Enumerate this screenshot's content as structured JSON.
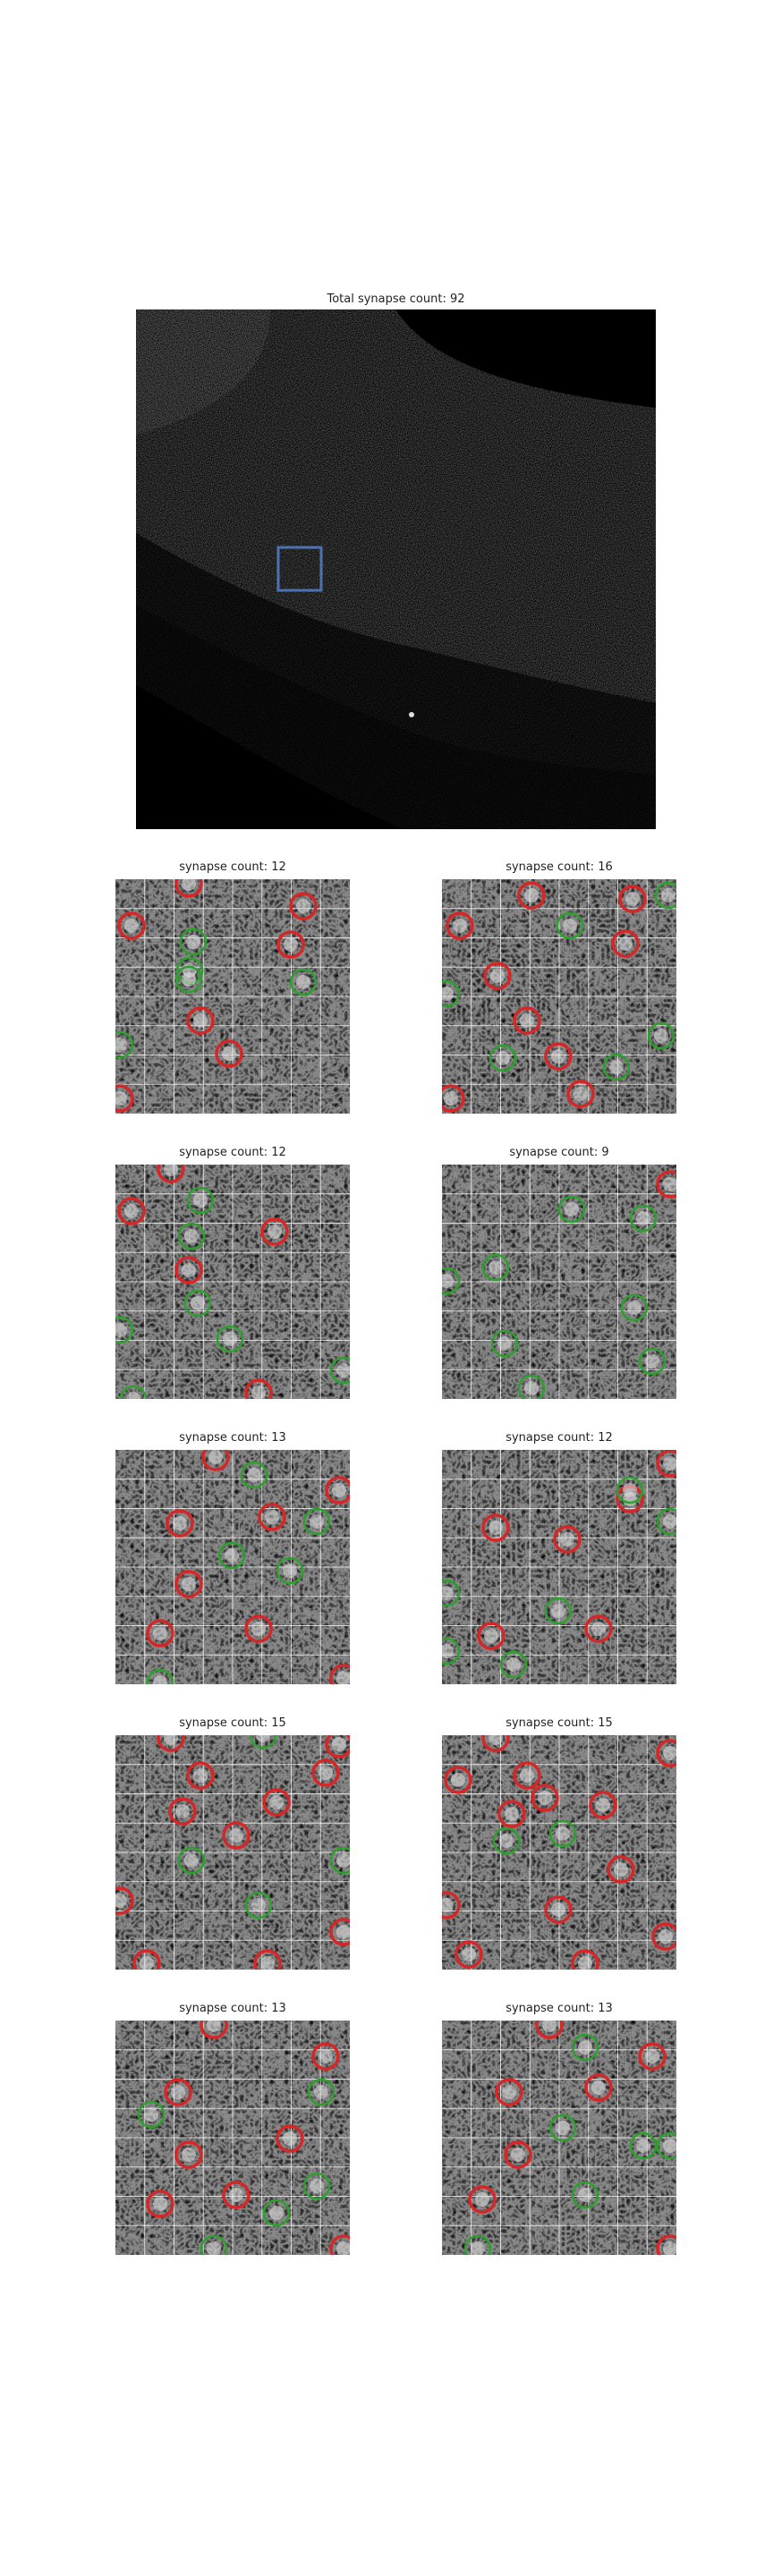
{
  "overview": {
    "title": "Total synapse count: 92",
    "roi_box_color": "#4c72b0"
  },
  "legend_colors": {
    "counted": "#d62728",
    "other": "#2ca02c"
  },
  "panels": [
    {
      "title": "synapse count: 12"
    },
    {
      "title": "synapse count: 16"
    },
    {
      "title": "synapse count: 12"
    },
    {
      "title": "synapse count: 9"
    },
    {
      "title": "synapse count: 13"
    },
    {
      "title": "synapse count: 12"
    },
    {
      "title": "synapse count: 15"
    },
    {
      "title": "synapse count: 15"
    },
    {
      "title": "synapse count: 13"
    },
    {
      "title": "synapse count: 13"
    }
  ]
}
